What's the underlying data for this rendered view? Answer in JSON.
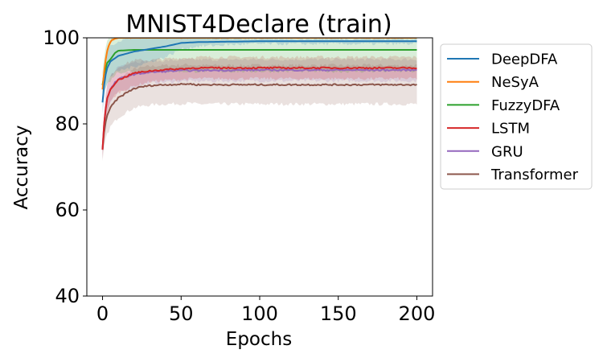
{
  "chart_data": {
    "type": "line",
    "title": "MNIST4Declare (train)",
    "xlabel": "Epochs",
    "ylabel": "Accuracy",
    "xlim": [
      -10,
      210
    ],
    "ylim": [
      40,
      100
    ],
    "xticks": [
      0,
      50,
      100,
      150,
      200
    ],
    "yticks": [
      40,
      60,
      80,
      100
    ],
    "grid": false,
    "legend_position": "outside-right",
    "series": [
      {
        "name": "DeepDFA",
        "color": "#1f77b4",
        "x": [
          0,
          1,
          2,
          3,
          5,
          10,
          15,
          20,
          30,
          40,
          50,
          60,
          80,
          100,
          150,
          200
        ],
        "y": [
          85,
          89,
          91.5,
          93,
          94.5,
          95.8,
          96.3,
          96.8,
          97.4,
          98,
          98.8,
          99,
          99.1,
          99.2,
          99.2,
          99.2
        ],
        "band": [
          3,
          3.5,
          3.5,
          3.5,
          3.5,
          3.5,
          3.5,
          3.5,
          3,
          2.5,
          1.5,
          1,
          0.7,
          0.6,
          0.6,
          0.6
        ]
      },
      {
        "name": "NeSyA",
        "color": "#ff7f0e",
        "x": [
          0,
          1,
          2,
          3,
          4,
          5,
          6,
          8,
          10,
          15,
          200
        ],
        "y": [
          88,
          92,
          95,
          97,
          98.2,
          99,
          99.5,
          99.8,
          100,
          100,
          100
        ],
        "band": [
          2,
          1.5,
          1,
          0.8,
          0.6,
          0.4,
          0.3,
          0.2,
          0.1,
          0.1,
          0.1
        ]
      },
      {
        "name": "FuzzyDFA",
        "color": "#2ca02c",
        "x": [
          0,
          1,
          2,
          3,
          5,
          8,
          10,
          15,
          20,
          30,
          50,
          100,
          150,
          200
        ],
        "y": [
          89,
          91.5,
          93,
          94.2,
          95,
          96.5,
          97,
          97.1,
          97.2,
          97.2,
          97.2,
          97.2,
          97.2,
          97.2
        ],
        "band": [
          3,
          4,
          4.5,
          5,
          5,
          5,
          5,
          5,
          5,
          5,
          5,
          5,
          5,
          5
        ]
      },
      {
        "name": "LSTM",
        "color": "#d62728",
        "x": [
          0,
          1,
          2,
          3,
          5,
          8,
          10,
          15,
          20,
          30,
          40,
          50,
          60,
          100,
          150,
          200
        ],
        "y": [
          74,
          80,
          83.5,
          86,
          88,
          89.5,
          90.2,
          91,
          91.8,
          92.3,
          92.6,
          92.8,
          93,
          93,
          93,
          93
        ],
        "band": [
          2,
          2.5,
          3,
          3,
          3,
          3,
          3,
          3,
          3,
          2.5,
          2.5,
          2.5,
          2.5,
          2.5,
          2.5,
          2.5
        ]
      },
      {
        "name": "GRU",
        "color": "#9467bd",
        "x": [
          0,
          1,
          2,
          3,
          5,
          8,
          10,
          15,
          20,
          30,
          50,
          100,
          150,
          200
        ],
        "y": [
          74,
          80,
          83.5,
          86,
          88,
          89.6,
          90.3,
          91,
          91.5,
          92,
          92.4,
          92.5,
          92.5,
          92.5
        ],
        "band": [
          2,
          2.5,
          3,
          3,
          3,
          3,
          3,
          3,
          3,
          2.5,
          2.5,
          2.5,
          2.5,
          2.5
        ]
      },
      {
        "name": "Transformer",
        "color": "#8c564b",
        "x": [
          0,
          1,
          2,
          3,
          5,
          8,
          10,
          15,
          20,
          25,
          30,
          35,
          40,
          50,
          55,
          60,
          100,
          150,
          200
        ],
        "y": [
          74,
          78,
          80.5,
          82,
          83.8,
          85.2,
          86,
          87.2,
          88.2,
          88.6,
          88.9,
          89,
          89.1,
          89.2,
          89.3,
          89.1,
          89.1,
          89.1,
          89.1
        ],
        "band": [
          3,
          3.5,
          4,
          4.5,
          4.5,
          4.5,
          4.5,
          4.5,
          4.5,
          4.5,
          4.5,
          4.5,
          4.5,
          4.5,
          4.5,
          4.5,
          4.5,
          4.5,
          4.5
        ]
      }
    ]
  }
}
